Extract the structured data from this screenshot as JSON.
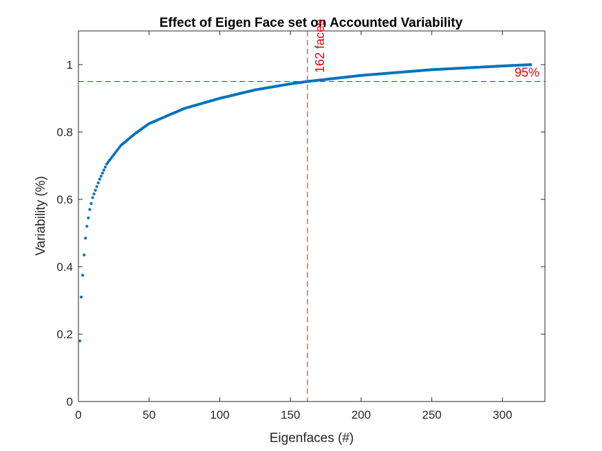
{
  "chart_data": {
    "type": "scatter",
    "title": "Effect of Eigen Face set on Accounted Variability",
    "xlabel": "Eigenfaces (#)",
    "ylabel": "Variability (%)",
    "xlim": [
      0,
      330
    ],
    "ylim": [
      0,
      1.1
    ],
    "xticks": [
      0,
      50,
      100,
      150,
      200,
      250,
      300
    ],
    "yticks": [
      0,
      0.2,
      0.4,
      0.6,
      0.8,
      1
    ],
    "grid": false,
    "series": [
      {
        "color": "#0072BD",
        "marker": "dot",
        "n_points": 320,
        "sample_points": [
          {
            "x": 1,
            "y": 0.18
          },
          {
            "x": 2,
            "y": 0.31
          },
          {
            "x": 3,
            "y": 0.375
          },
          {
            "x": 4,
            "y": 0.435
          },
          {
            "x": 5,
            "y": 0.485
          },
          {
            "x": 6,
            "y": 0.52
          },
          {
            "x": 7,
            "y": 0.545
          },
          {
            "x": 8,
            "y": 0.57
          },
          {
            "x": 10,
            "y": 0.605
          },
          {
            "x": 15,
            "y": 0.66
          },
          {
            "x": 20,
            "y": 0.705
          },
          {
            "x": 30,
            "y": 0.76
          },
          {
            "x": 40,
            "y": 0.795
          },
          {
            "x": 50,
            "y": 0.825
          },
          {
            "x": 75,
            "y": 0.87
          },
          {
            "x": 100,
            "y": 0.9
          },
          {
            "x": 125,
            "y": 0.925
          },
          {
            "x": 150,
            "y": 0.943
          },
          {
            "x": 162,
            "y": 0.95
          },
          {
            "x": 200,
            "y": 0.968
          },
          {
            "x": 250,
            "y": 0.985
          },
          {
            "x": 300,
            "y": 0.996
          },
          {
            "x": 320,
            "y": 1.0
          }
        ]
      }
    ],
    "reference_lines": {
      "color": "#E8000B",
      "vertical": {
        "x": 162,
        "label": "162 faces"
      },
      "horizontal": {
        "y": 0.95,
        "label": "95%"
      }
    }
  }
}
